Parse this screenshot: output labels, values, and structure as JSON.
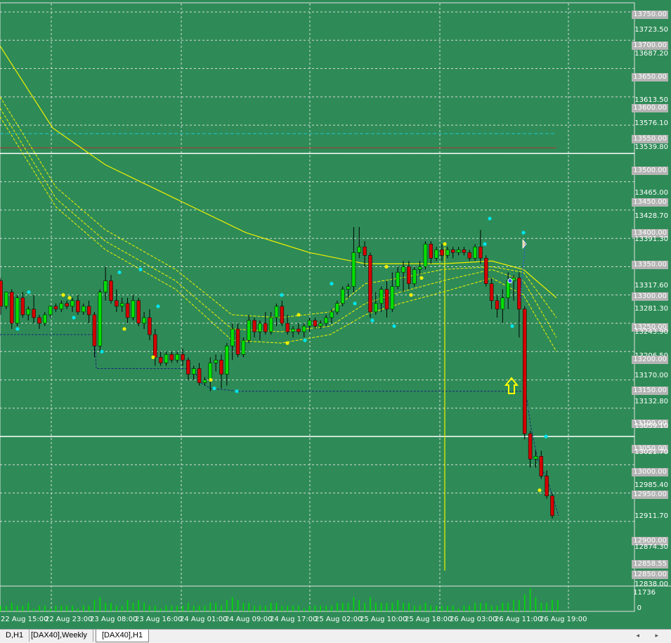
{
  "colors": {
    "background": "#2e8b57",
    "grid": "#d8d8d8",
    "bull": "#00e000",
    "bear": "#d40000",
    "ma": "#f0f000",
    "dot_cyan": "#00e5ee",
    "dot_yellow": "#f0f000",
    "level_line": "#ffffff",
    "teal_line": "#20c0c0",
    "red_line": "#b03030",
    "stop_line": "#1a237e",
    "arrow": "#ffff00"
  },
  "price_labels": [
    {
      "text": "13750.00",
      "boxed": true
    },
    {
      "text": "13723.50",
      "boxed": false
    },
    {
      "text": "13700.00",
      "boxed": true
    },
    {
      "text": "13687.20",
      "boxed": false
    },
    {
      "text": "13650.00",
      "boxed": true
    },
    {
      "text": "13613.50",
      "boxed": false
    },
    {
      "text": "13600.00",
      "boxed": true
    },
    {
      "text": "13576.10",
      "boxed": false
    },
    {
      "text": "13550.00",
      "boxed": true
    },
    {
      "text": "13539.80",
      "boxed": false
    },
    {
      "text": "13500.00",
      "boxed": true
    },
    {
      "text": "13465.00",
      "boxed": false
    },
    {
      "text": "13450.00",
      "boxed": true
    },
    {
      "text": "13428.70",
      "boxed": false
    },
    {
      "text": "13400.00",
      "boxed": true
    },
    {
      "text": "13391.30",
      "boxed": false
    },
    {
      "text": "13350.00",
      "boxed": true
    },
    {
      "text": "13317.60",
      "boxed": false
    },
    {
      "text": "13300.00",
      "boxed": true
    },
    {
      "text": "13281.30",
      "boxed": false
    },
    {
      "text": "13250.00",
      "boxed": true
    },
    {
      "text": "13243.90",
      "boxed": false
    },
    {
      "text": "13206.50",
      "boxed": false
    },
    {
      "text": "13200.00",
      "boxed": true
    },
    {
      "text": "13170.00",
      "boxed": false
    },
    {
      "text": "13150.00",
      "boxed": true
    },
    {
      "text": "13132.80",
      "boxed": false
    },
    {
      "text": "13100.00",
      "boxed": true
    },
    {
      "text": "13059.10",
      "boxed": false
    },
    {
      "text": "13050.00",
      "boxed": true
    },
    {
      "text": "13021.70",
      "boxed": false
    },
    {
      "text": "13000.00",
      "boxed": true
    },
    {
      "text": "12985.40",
      "boxed": false
    },
    {
      "text": "12950.00",
      "boxed": true
    },
    {
      "text": "12911.70",
      "boxed": false
    },
    {
      "text": "12900.00",
      "boxed": true
    },
    {
      "text": "12874.30",
      "boxed": false
    },
    {
      "text": "12858.55",
      "boxed": true
    },
    {
      "text": "12850.00",
      "boxed": true
    },
    {
      "text": "12838.00",
      "boxed": false
    }
  ],
  "volume_axis": {
    "max": "11736",
    "zero": "0"
  },
  "time_labels": [
    "22 Aug 15:00",
    "22 Aug 23:00",
    "23 Aug 08:00",
    "23 Aug 16:00",
    "24 Aug 01:00",
    "24 Aug 09:00",
    "24 Aug 17:00",
    "25 Aug 02:00",
    "25 Aug 10:00",
    "25 Aug 18:00",
    "26 Aug 03:00",
    "26 Aug 11:00",
    "26 Aug 19:00"
  ],
  "tabs": [
    {
      "label": "D,H1",
      "active": false
    },
    {
      "label": "[DAX40],Weekly",
      "active": false
    },
    {
      "label": "[DAX40],H1",
      "active": true
    }
  ],
  "tab_arrows": "◂ ▸",
  "chart_data": {
    "type": "candlestick",
    "symbol": "DAX40",
    "timeframe": "H1",
    "candles": [
      {
        "o": 13275,
        "h": 13280,
        "c": 13230,
        "l": 13215
      },
      {
        "o": 13230,
        "h": 13250,
        "c": 13255,
        "l": 13225
      },
      {
        "o": 13255,
        "h": 13260,
        "c": 13200,
        "l": 13190
      },
      {
        "o": 13200,
        "h": 13250,
        "c": 13245,
        "l": 13195
      },
      {
        "o": 13245,
        "h": 13255,
        "c": 13215,
        "l": 13210
      },
      {
        "o": 13215,
        "h": 13230,
        "c": 13225,
        "l": 13205
      },
      {
        "o": 13225,
        "h": 13250,
        "c": 13210,
        "l": 13200
      },
      {
        "o": 13210,
        "h": 13215,
        "c": 13200,
        "l": 13190
      },
      {
        "o": 13200,
        "h": 13220,
        "c": 13215,
        "l": 13195
      },
      {
        "o": 13215,
        "h": 13225,
        "c": 13230,
        "l": 13210
      },
      {
        "o": 13230,
        "h": 13235,
        "c": 13225,
        "l": 13220
      },
      {
        "o": 13225,
        "h": 13240,
        "c": 13235,
        "l": 13220
      },
      {
        "o": 13235,
        "h": 13240,
        "c": 13230,
        "l": 13225
      },
      {
        "o": 13230,
        "h": 13245,
        "c": 13240,
        "l": 13220
      },
      {
        "o": 13240,
        "h": 13250,
        "c": 13220,
        "l": 13215
      },
      {
        "o": 13220,
        "h": 13235,
        "c": 13230,
        "l": 13215
      },
      {
        "o": 13230,
        "h": 13240,
        "c": 13215,
        "l": 13200
      },
      {
        "o": 13215,
        "h": 13220,
        "c": 13160,
        "l": 13140
      },
      {
        "o": 13160,
        "h": 13260,
        "c": 13255,
        "l": 13150
      },
      {
        "o": 13255,
        "h": 13300,
        "c": 13275,
        "l": 13240
      },
      {
        "o": 13275,
        "h": 13285,
        "c": 13240,
        "l": 13235
      },
      {
        "o": 13240,
        "h": 13260,
        "c": 13230,
        "l": 13220
      },
      {
        "o": 13230,
        "h": 13245,
        "c": 13235,
        "l": 13220
      },
      {
        "o": 13235,
        "h": 13245,
        "c": 13210,
        "l": 13200
      },
      {
        "o": 13210,
        "h": 13250,
        "c": 13240,
        "l": 13205
      },
      {
        "o": 13240,
        "h": 13245,
        "c": 13200,
        "l": 13195
      },
      {
        "o": 13200,
        "h": 13220,
        "c": 13210,
        "l": 13190
      },
      {
        "o": 13210,
        "h": 13225,
        "c": 13180,
        "l": 13170
      },
      {
        "o": 13180,
        "h": 13190,
        "c": 13140,
        "l": 13125
      },
      {
        "o": 13140,
        "h": 13150,
        "c": 13130,
        "l": 13125
      },
      {
        "o": 13130,
        "h": 13150,
        "c": 13145,
        "l": 13125
      },
      {
        "o": 13145,
        "h": 13150,
        "c": 13135,
        "l": 13130
      },
      {
        "o": 13135,
        "h": 13150,
        "c": 13145,
        "l": 13130
      },
      {
        "o": 13145,
        "h": 13155,
        "c": 13135,
        "l": 13125
      },
      {
        "o": 13135,
        "h": 13140,
        "c": 13110,
        "l": 13100
      },
      {
        "o": 13110,
        "h": 13125,
        "c": 13120,
        "l": 13100
      },
      {
        "o": 13120,
        "h": 13130,
        "c": 13095,
        "l": 13090
      },
      {
        "o": 13095,
        "h": 13105,
        "c": 13100,
        "l": 13090
      },
      {
        "o": 13100,
        "h": 13140,
        "c": 13130,
        "l": 13080
      },
      {
        "o": 13130,
        "h": 13145,
        "c": 13135,
        "l": 13115
      },
      {
        "o": 13135,
        "h": 13145,
        "c": 13110,
        "l": 13085
      },
      {
        "o": 13110,
        "h": 13165,
        "c": 13160,
        "l": 13090
      },
      {
        "o": 13160,
        "h": 13200,
        "c": 13190,
        "l": 13135
      },
      {
        "o": 13190,
        "h": 13200,
        "c": 13145,
        "l": 13140
      },
      {
        "o": 13145,
        "h": 13175,
        "c": 13170,
        "l": 13140
      },
      {
        "o": 13170,
        "h": 13215,
        "c": 13205,
        "l": 13165
      },
      {
        "o": 13205,
        "h": 13210,
        "c": 13185,
        "l": 13175
      },
      {
        "o": 13185,
        "h": 13205,
        "c": 13200,
        "l": 13170
      },
      {
        "o": 13200,
        "h": 13220,
        "c": 13185,
        "l": 13180
      },
      {
        "o": 13185,
        "h": 13220,
        "c": 13210,
        "l": 13180
      },
      {
        "o": 13210,
        "h": 13235,
        "c": 13230,
        "l": 13195
      },
      {
        "o": 13230,
        "h": 13240,
        "c": 13200,
        "l": 13195
      },
      {
        "o": 13200,
        "h": 13215,
        "c": 13185,
        "l": 13180
      },
      {
        "o": 13185,
        "h": 13195,
        "c": 13190,
        "l": 13175
      },
      {
        "o": 13190,
        "h": 13200,
        "c": 13185,
        "l": 13180
      },
      {
        "o": 13185,
        "h": 13200,
        "c": 13195,
        "l": 13175
      },
      {
        "o": 13195,
        "h": 13210,
        "c": 13205,
        "l": 13185
      },
      {
        "o": 13205,
        "h": 13210,
        "c": 13195,
        "l": 13190
      },
      {
        "o": 13195,
        "h": 13205,
        "c": 13200,
        "l": 13190
      },
      {
        "o": 13200,
        "h": 13215,
        "c": 13210,
        "l": 13195
      },
      {
        "o": 13210,
        "h": 13225,
        "c": 13220,
        "l": 13200
      },
      {
        "o": 13220,
        "h": 13240,
        "c": 13235,
        "l": 13215
      },
      {
        "o": 13235,
        "h": 13265,
        "c": 13260,
        "l": 13230
      },
      {
        "o": 13260,
        "h": 13270,
        "c": 13265,
        "l": 13245
      },
      {
        "o": 13265,
        "h": 13370,
        "c": 13325,
        "l": 13255
      },
      {
        "o": 13325,
        "h": 13370,
        "c": 13335,
        "l": 13315
      },
      {
        "o": 13335,
        "h": 13345,
        "c": 13320,
        "l": 13300
      },
      {
        "o": 13320,
        "h": 13325,
        "c": 13220,
        "l": 13210
      },
      {
        "o": 13220,
        "h": 13255,
        "c": 13235,
        "l": 13215
      },
      {
        "o": 13235,
        "h": 13265,
        "c": 13260,
        "l": 13220
      },
      {
        "o": 13260,
        "h": 13275,
        "c": 13225,
        "l": 13210
      },
      {
        "o": 13225,
        "h": 13290,
        "c": 13265,
        "l": 13220
      },
      {
        "o": 13265,
        "h": 13300,
        "c": 13290,
        "l": 13260
      },
      {
        "o": 13290,
        "h": 13310,
        "c": 13300,
        "l": 13255
      },
      {
        "o": 13300,
        "h": 13310,
        "c": 13270,
        "l": 13260
      },
      {
        "o": 13270,
        "h": 13300,
        "c": 13295,
        "l": 13265
      },
      {
        "o": 13295,
        "h": 13310,
        "c": 13300,
        "l": 13285
      },
      {
        "o": 13300,
        "h": 13345,
        "c": 13340,
        "l": 13295
      },
      {
        "o": 13340,
        "h": 13345,
        "c": 13315,
        "l": 13305
      },
      {
        "o": 13315,
        "h": 13335,
        "c": 13330,
        "l": 13310
      },
      {
        "o": 13330,
        "h": 13340,
        "c": 13320,
        "l": 13310
      },
      {
        "o": 13320,
        "h": 13335,
        "c": 13330,
        "l": 13315
      },
      {
        "o": 13330,
        "h": 13335,
        "c": 13325,
        "l": 13315
      },
      {
        "o": 13325,
        "h": 13335,
        "c": 13330,
        "l": 13320
      },
      {
        "o": 13330,
        "h": 13335,
        "c": 13325,
        "l": 13320
      },
      {
        "o": 13325,
        "h": 13330,
        "c": 13315,
        "l": 13310
      },
      {
        "o": 13315,
        "h": 13340,
        "c": 13335,
        "l": 13310
      },
      {
        "o": 13335,
        "h": 13365,
        "c": 13315,
        "l": 13305
      },
      {
        "o": 13315,
        "h": 13320,
        "c": 13270,
        "l": 13265
      },
      {
        "o": 13270,
        "h": 13280,
        "c": 13240,
        "l": 13225
      },
      {
        "o": 13240,
        "h": 13250,
        "c": 13225,
        "l": 13210
      },
      {
        "o": 13225,
        "h": 13260,
        "c": 13245,
        "l": 13200
      },
      {
        "o": 13245,
        "h": 13290,
        "c": 13275,
        "l": 13225
      },
      {
        "o": 13275,
        "h": 13285,
        "c": 13280,
        "l": 13240
      },
      {
        "o": 13280,
        "h": 13290,
        "c": 13225,
        "l": 13175
      },
      {
        "o": 13225,
        "h": 13230,
        "c": 13005,
        "l": 12995
      },
      {
        "o": 13005,
        "h": 13010,
        "c": 12960,
        "l": 12945
      },
      {
        "o": 12960,
        "h": 12975,
        "c": 12965,
        "l": 12945
      },
      {
        "o": 12965,
        "h": 12975,
        "c": 12930,
        "l": 12925
      },
      {
        "o": 12930,
        "h": 12940,
        "c": 12895,
        "l": 12890
      },
      {
        "o": 12895,
        "h": 12900,
        "c": 12860,
        "l": 12855
      }
    ],
    "ma_long": [
      [
        0,
        13690
      ],
      [
        75,
        13545
      ],
      [
        150,
        13480
      ],
      [
        250,
        13420
      ],
      [
        350,
        13360
      ],
      [
        440,
        13325
      ],
      [
        520,
        13305
      ],
      [
        630,
        13305
      ],
      [
        700,
        13310
      ],
      [
        745,
        13295
      ],
      [
        792,
        13245
      ]
    ],
    "band_upper": [
      [
        0,
        13600
      ],
      [
        80,
        13440
      ],
      [
        150,
        13365
      ],
      [
        250,
        13295
      ],
      [
        330,
        13215
      ],
      [
        400,
        13210
      ],
      [
        470,
        13220
      ],
      [
        520,
        13270
      ],
      [
        570,
        13280
      ],
      [
        630,
        13295
      ],
      [
        700,
        13300
      ],
      [
        745,
        13290
      ],
      [
        792,
        13210
      ]
    ],
    "band_mid": [
      [
        0,
        13580
      ],
      [
        80,
        13420
      ],
      [
        150,
        13345
      ],
      [
        250,
        13275
      ],
      [
        330,
        13190
      ],
      [
        400,
        13185
      ],
      [
        470,
        13195
      ],
      [
        520,
        13235
      ],
      [
        570,
        13255
      ],
      [
        630,
        13275
      ],
      [
        700,
        13295
      ],
      [
        745,
        13275
      ],
      [
        792,
        13175
      ]
    ],
    "band_lower": [
      [
        0,
        13565
      ],
      [
        80,
        13405
      ],
      [
        150,
        13330
      ],
      [
        250,
        13260
      ],
      [
        330,
        13170
      ],
      [
        400,
        13165
      ],
      [
        470,
        13180
      ],
      [
        520,
        13215
      ],
      [
        570,
        13235
      ],
      [
        630,
        13255
      ],
      [
        700,
        13280
      ],
      [
        745,
        13250
      ],
      [
        792,
        13150
      ]
    ],
    "levels": [
      13500,
      13000
    ],
    "teal_level": 13535,
    "red_level": 13510,
    "vline_x_label": "25 Aug 18:00",
    "volumes": [
      2,
      2,
      3,
      2,
      2,
      3,
      1,
      2,
      2,
      1,
      2,
      2,
      2,
      2,
      1,
      2,
      2,
      4,
      5,
      3,
      3,
      2,
      2,
      4,
      3,
      4,
      3,
      2,
      2,
      1,
      2,
      2,
      2,
      2,
      3,
      2,
      2,
      2,
      3,
      3,
      2,
      4,
      5,
      4,
      3,
      3,
      2,
      2,
      2,
      3,
      3,
      2,
      2,
      2,
      2,
      1,
      2,
      2,
      2,
      2,
      2,
      3,
      3,
      3,
      5,
      4,
      3,
      5,
      3,
      3,
      3,
      3,
      4,
      3,
      3,
      2,
      2,
      3,
      2,
      2,
      2,
      2,
      2,
      1,
      2,
      2,
      3,
      3,
      3,
      2,
      2,
      3,
      3,
      4,
      4,
      6,
      8,
      5,
      3,
      3,
      4,
      4
    ]
  }
}
